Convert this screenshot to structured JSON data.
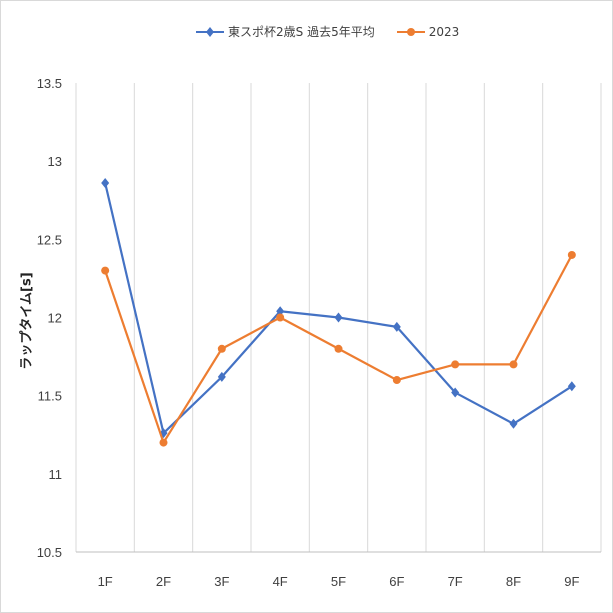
{
  "chart_data": {
    "type": "line",
    "categories": [
      "1F",
      "2F",
      "3F",
      "4F",
      "5F",
      "6F",
      "7F",
      "8F",
      "9F"
    ],
    "series": [
      {
        "name": "東スポ杯2歳S 過去5年平均",
        "color": "#4472C4",
        "marker": "diamond",
        "values": [
          12.86,
          11.26,
          11.62,
          12.04,
          12.0,
          11.94,
          11.52,
          11.32,
          11.56
        ]
      },
      {
        "name": "2023",
        "color": "#ED7D31",
        "marker": "circle",
        "values": [
          12.3,
          11.2,
          11.8,
          12.0,
          11.8,
          11.6,
          11.7,
          11.7,
          12.4
        ]
      }
    ],
    "title": "",
    "xlabel": "",
    "ylabel": "ラップタイム[s]",
    "ylim": [
      10.5,
      13.5
    ],
    "yticks": [
      "10.5",
      "11",
      "11.5",
      "12",
      "12.5",
      "13",
      "13.5"
    ],
    "grid": "vertical",
    "legend_position": "top"
  }
}
